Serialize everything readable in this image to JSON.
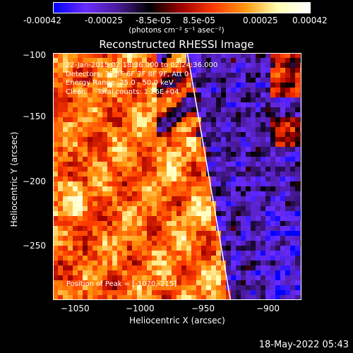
{
  "colorbar": {
    "tick_labels": [
      "-0.00042",
      "-0.00025",
      "-8.5e-05",
      "8.5e-05",
      "0.00025",
      "0.00042"
    ],
    "units_label": "(photons cm⁻² s⁻¹ asec⁻²)",
    "range": [
      -0.00042,
      0.00042
    ],
    "colormap": [
      "#0000ff",
      "#6a2cff",
      "#4a1a9a",
      "#000000",
      "#a00000",
      "#ff3a00",
      "#ff9a10",
      "#ffffb0",
      "#ffffff"
    ]
  },
  "chart_data": {
    "type": "heatmap",
    "title": "Reconstructed RHESSI Image",
    "xlabel": "Heliocentric X (arcsec)",
    "ylabel": "Heliocentric Y (arcsec)",
    "xlim": [
      -1068,
      -872
    ],
    "ylim": [
      -290,
      -100
    ],
    "x_ticks": [
      -1050,
      -1000,
      -950,
      -900
    ],
    "x_tick_labels": [
      "−1050",
      "−1000",
      "−950",
      "−900"
    ],
    "y_ticks": [
      -100,
      -150,
      -200,
      -250
    ],
    "y_tick_labels": [
      "−100",
      "−150",
      "−200",
      "−250"
    ],
    "limb_line": [
      [
        -962,
        -100
      ],
      [
        -928,
        -290
      ]
    ],
    "annotations": [
      "22-Jan-2015 02:18:36.000 to 02:24:36.000",
      "Detectors: 3F 5F 6F 7F 8F 9F, Att 0",
      "Energy Range: 25.0 - 50.0 keV",
      "Clean     Total counts: 1.26E+04"
    ],
    "peak_label": "Position of Peak = [-1070,-215]",
    "peak_position": [
      -1070,
      -215
    ]
  },
  "footer": {
    "date": "18-May-2022 05:43"
  }
}
